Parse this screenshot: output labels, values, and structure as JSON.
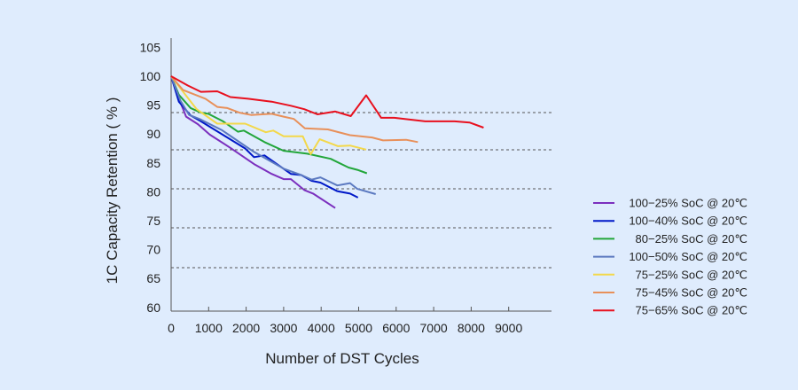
{
  "chart_data": {
    "type": "line",
    "title": "",
    "xlabel": "Number of DST Cycles",
    "ylabel": "1C Capacity Retention ( % )",
    "xlim": [
      0,
      9000
    ],
    "ylim": [
      60,
      105
    ],
    "x_ticks": [
      "0",
      "1000",
      "2000",
      "3000",
      "4000",
      "5000",
      "6000",
      "7000",
      "8000",
      "9000"
    ],
    "y_ticks": [
      "60",
      "65",
      "70",
      "75",
      "80",
      "85",
      "90",
      "95",
      "100",
      "105"
    ],
    "grid": "horizontal dashed",
    "legend_position": "right",
    "series": [
      {
        "name": "100−25% SoC @ 20℃",
        "color": "#7b2fbe",
        "x": [
          0,
          165,
          400,
          715,
          1030,
          1580,
          2210,
          2680,
          3000,
          3195,
          3550,
          3785,
          4375
        ],
        "y": [
          100,
          96.8,
          93.0,
          91.7,
          89.9,
          87.6,
          84.8,
          83.1,
          82.2,
          82.2,
          80.3,
          79.7,
          77.2
        ]
      },
      {
        "name": "100−40% SoC @ 20℃",
        "color": "#0018c8",
        "x": [
          0,
          205,
          520,
          795,
          1975,
          2210,
          2490,
          3195,
          3470,
          3745,
          3980,
          4430,
          4770,
          4980
        ],
        "y": [
          100,
          95.6,
          93.2,
          92.2,
          87.5,
          86.0,
          86.3,
          83.1,
          82.9,
          81.9,
          81.6,
          80.1,
          79.7,
          79.0
        ]
      },
      {
        "name": "80−25% SoC @ 20℃",
        "color": "#22a63a",
        "x": [
          0,
          205,
          520,
          795,
          990,
          1385,
          1780,
          1935,
          2490,
          3000,
          3630,
          4255,
          4730,
          4965,
          5220
        ],
        "y": [
          100,
          96.8,
          94.5,
          93.7,
          93.5,
          92.2,
          90.4,
          90.6,
          88.6,
          87.1,
          86.6,
          85.7,
          84.2,
          83.8,
          83.2
        ]
      },
      {
        "name": "100−50% SoC @ 20℃",
        "color": "#5b79c0",
        "x": [
          0,
          245,
          480,
          755,
          1345,
          2210,
          3000,
          3470,
          3745,
          3980,
          4430,
          4770,
          4965,
          5455
        ],
        "y": [
          100,
          95.8,
          93.3,
          92.6,
          90.7,
          86.9,
          84.0,
          82.9,
          82.1,
          82.5,
          81.1,
          81.5,
          80.5,
          79.6
        ]
      },
      {
        "name": "75−25% SoC @ 20℃",
        "color": "#f3d84a",
        "x": [
          0,
          440,
          680,
          1230,
          1975,
          2525,
          2720,
          3000,
          3510,
          3720,
          3960,
          4450,
          4770,
          5200
        ],
        "y": [
          100,
          96.3,
          94.3,
          91.8,
          91.8,
          90.3,
          90.6,
          89.6,
          89.6,
          86.5,
          89.1,
          87.9,
          88.0,
          87.3
        ]
      },
      {
        "name": "75−45% SoC @ 20℃",
        "color": "#e8905a",
        "x": [
          0,
          320,
          915,
          1230,
          1500,
          1820,
          2130,
          2680,
          3000,
          3275,
          3565,
          4180,
          4770,
          5360,
          5650,
          6265,
          6580
        ],
        "y": [
          100,
          97.6,
          96.1,
          94.7,
          94.5,
          93.7,
          93.3,
          93.5,
          93.0,
          92.6,
          91.0,
          90.8,
          89.8,
          89.4,
          88.9,
          89.0,
          88.6
        ]
      },
      {
        "name": "75−65% SoC @ 20℃",
        "color": "#e8101e",
        "x": [
          0,
          440,
          795,
          1230,
          1580,
          2050,
          2680,
          3195,
          3550,
          3900,
          4375,
          4790,
          5200,
          5600,
          5950,
          6775,
          7560,
          7955,
          8330
        ],
        "y": [
          100,
          98.4,
          97.3,
          97.4,
          96.4,
          96.1,
          95.6,
          94.9,
          94.3,
          93.4,
          93.9,
          93.1,
          96.7,
          92.8,
          92.8,
          92.2,
          92.2,
          92.0,
          91.1
        ]
      }
    ]
  }
}
